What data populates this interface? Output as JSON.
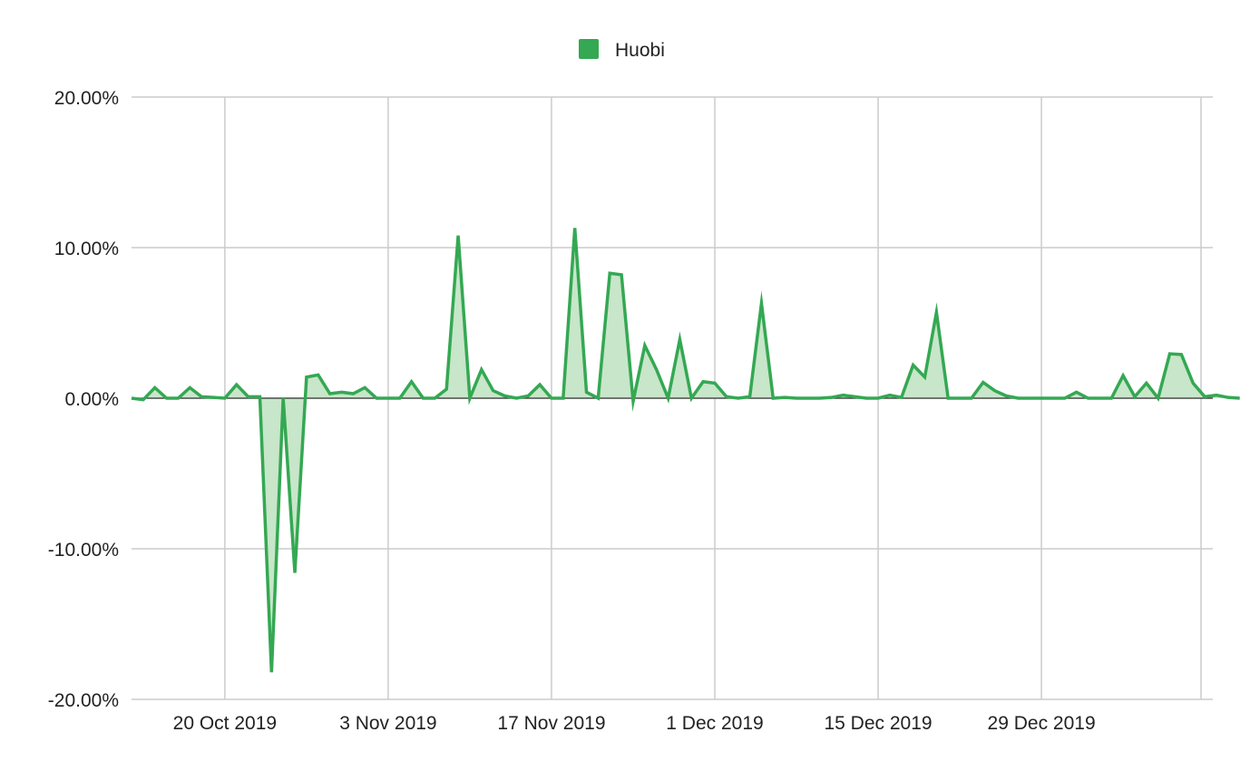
{
  "chart_data": {
    "type": "area",
    "title": "",
    "xlabel": "",
    "ylabel": "",
    "legend": {
      "position": "top",
      "entries": [
        "Huobi"
      ]
    },
    "grid": true,
    "xlim": [
      "2019-10-12",
      "2020-01-15"
    ],
    "ylim": [
      -20,
      20
    ],
    "y_ticks": [
      20,
      10,
      0,
      -10,
      -20
    ],
    "y_tick_labels": [
      "20.00%",
      "10.00%",
      "0.00%",
      "-10.00%",
      "-20.00%"
    ],
    "x_ticks": [
      "2019-10-20",
      "2019-11-03",
      "2019-11-17",
      "2019-12-01",
      "2019-12-15",
      "2019-12-29"
    ],
    "x_tick_labels": [
      "20 Oct 2019",
      "3 Nov 2019",
      "17 Nov 2019",
      "1 Dec 2019",
      "15 Dec 2019",
      "29 Dec 2019"
    ],
    "series": [
      {
        "name": "Huobi",
        "color": "#34a853",
        "fill_color": "#c8e6c9",
        "x": [
          "2019-10-12",
          "2019-10-13",
          "2019-10-14",
          "2019-10-15",
          "2019-10-16",
          "2019-10-17",
          "2019-10-18",
          "2019-10-19",
          "2019-10-20",
          "2019-10-21",
          "2019-10-22",
          "2019-10-23",
          "2019-10-24",
          "2019-10-25",
          "2019-10-26",
          "2019-10-27",
          "2019-10-28",
          "2019-10-29",
          "2019-10-30",
          "2019-10-31",
          "2019-11-01",
          "2019-11-02",
          "2019-11-03",
          "2019-11-04",
          "2019-11-05",
          "2019-11-06",
          "2019-11-07",
          "2019-11-08",
          "2019-11-09",
          "2019-11-10",
          "2019-11-11",
          "2019-11-12",
          "2019-11-13",
          "2019-11-14",
          "2019-11-15",
          "2019-11-16",
          "2019-11-17",
          "2019-11-18",
          "2019-11-19",
          "2019-11-20",
          "2019-11-21",
          "2019-11-22",
          "2019-11-23",
          "2019-11-24",
          "2019-11-25",
          "2019-11-26",
          "2019-11-27",
          "2019-11-28",
          "2019-11-29",
          "2019-11-30",
          "2019-12-01",
          "2019-12-02",
          "2019-12-03",
          "2019-12-04",
          "2019-12-05",
          "2019-12-06",
          "2019-12-07",
          "2019-12-08",
          "2019-12-09",
          "2019-12-10",
          "2019-12-11",
          "2019-12-12",
          "2019-12-13",
          "2019-12-14",
          "2019-12-15",
          "2019-12-16",
          "2019-12-17",
          "2019-12-18",
          "2019-12-19",
          "2019-12-20",
          "2019-12-21",
          "2019-12-22",
          "2019-12-23",
          "2019-12-24",
          "2019-12-25",
          "2019-12-26",
          "2019-12-27",
          "2019-12-28",
          "2019-12-29",
          "2019-12-30",
          "2019-12-31",
          "2020-01-01",
          "2020-01-02",
          "2020-01-03",
          "2020-01-04",
          "2020-01-05",
          "2020-01-06",
          "2020-01-07",
          "2020-01-08",
          "2020-01-09",
          "2020-01-10",
          "2020-01-11",
          "2020-01-12",
          "2020-01-13",
          "2020-01-14",
          "2020-01-15"
        ],
        "values": [
          0.0,
          -0.1,
          0.7,
          0.0,
          0.0,
          0.7,
          0.1,
          0.05,
          0.0,
          0.9,
          0.1,
          0.1,
          -18.2,
          0.0,
          -11.6,
          1.4,
          1.55,
          0.3,
          0.4,
          0.3,
          0.7,
          0.0,
          0.0,
          0.0,
          1.1,
          0.0,
          0.0,
          0.6,
          10.8,
          0.0,
          1.9,
          0.5,
          0.15,
          0.0,
          0.15,
          0.9,
          0.0,
          0.0,
          11.3,
          0.4,
          0.0,
          8.3,
          8.2,
          -0.2,
          3.5,
          1.9,
          0.0,
          3.9,
          0.0,
          1.1,
          1.0,
          0.1,
          0.0,
          0.1,
          6.3,
          0.0,
          0.05,
          0.0,
          0.0,
          0.0,
          0.05,
          0.2,
          0.1,
          0.0,
          0.0,
          0.2,
          0.05,
          2.2,
          1.4,
          5.7,
          0.0,
          0.0,
          0.0,
          1.05,
          0.5,
          0.15,
          0.0,
          0.0,
          0.0,
          0.0,
          0.0,
          0.4,
          0.0,
          0.0,
          0.0,
          1.5,
          0.1,
          1.0,
          0.0,
          2.95,
          2.9,
          1.0,
          0.1,
          0.2,
          0.05,
          0.0
        ]
      }
    ]
  }
}
